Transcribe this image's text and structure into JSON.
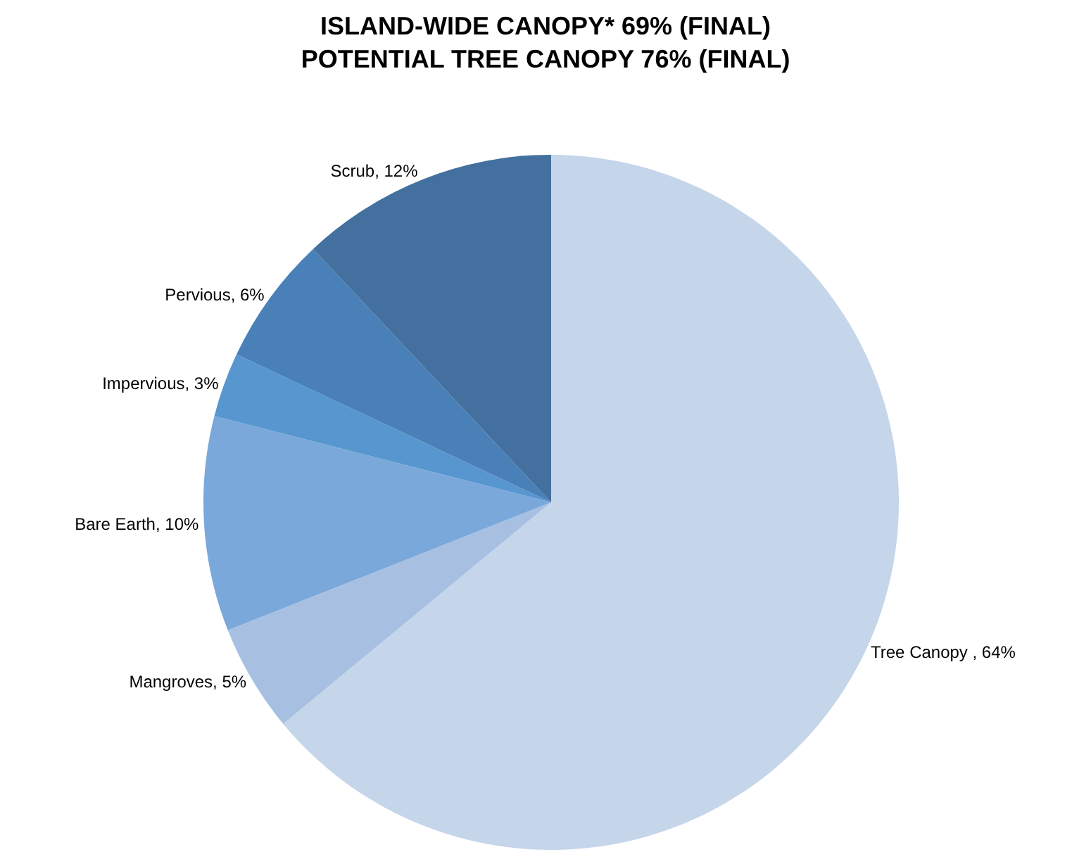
{
  "chart_data": {
    "type": "pie",
    "title": "ISLAND-WIDE CANOPY* 69% (FINAL)\nPOTENTIAL TREE CANOPY 76% (FINAL)",
    "categories": [
      "Tree Canopy ",
      "Mangroves",
      "Bare Earth",
      "Impervious",
      "Pervious",
      "Scrub"
    ],
    "values": [
      64,
      5,
      10,
      3,
      6,
      12
    ],
    "value_labels": [
      "64%",
      "5%",
      "10%",
      "3%",
      "6%",
      "12%"
    ],
    "colors": [
      "#c5d5ea",
      "#a7c0e2",
      "#7ba8da",
      "#5796cf",
      "#4a80b8",
      "#43709e"
    ],
    "legend": false
  }
}
